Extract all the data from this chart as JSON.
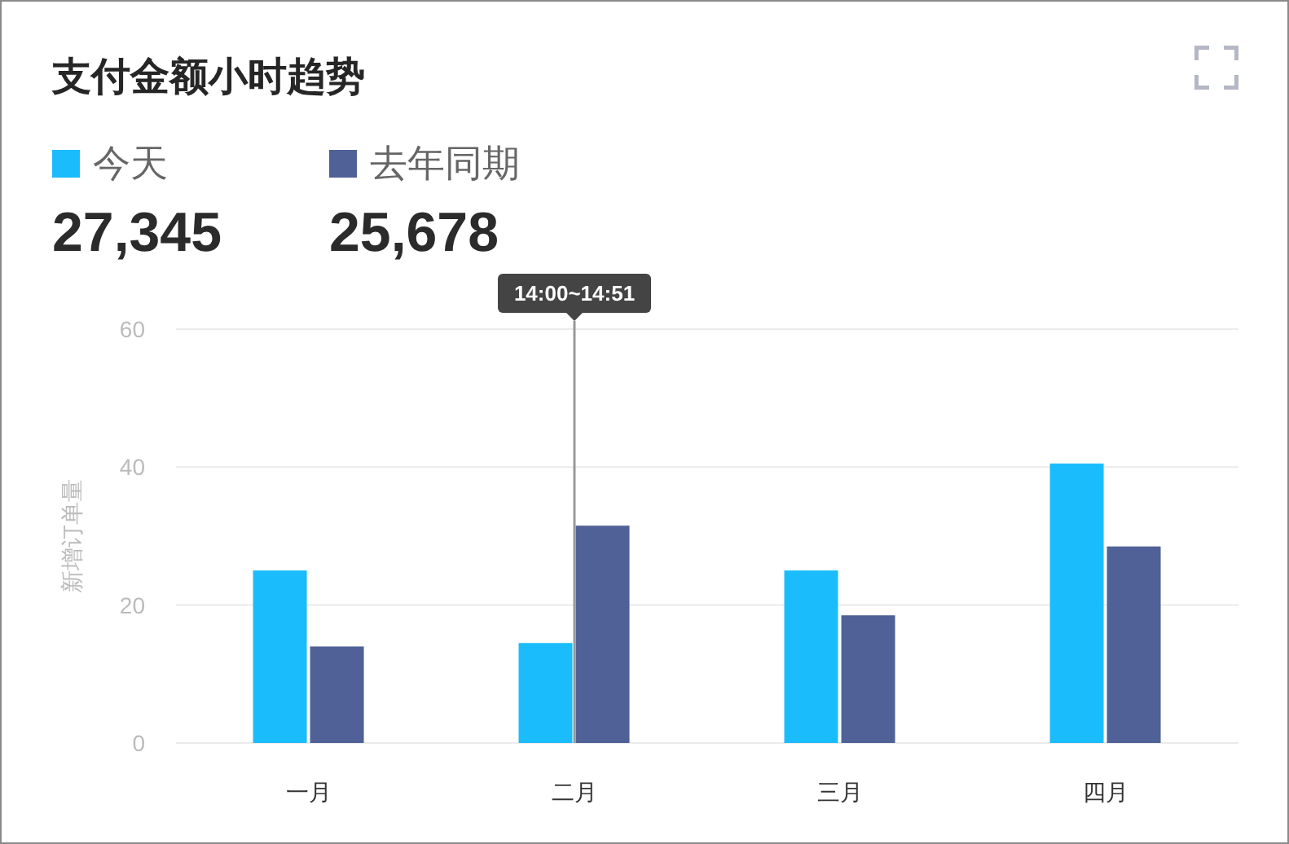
{
  "chart_data": {
    "type": "bar",
    "title": "支付金额小时趋势",
    "categories": [
      "一月",
      "二月",
      "三月",
      "四月"
    ],
    "series": [
      {
        "name": "今天",
        "color": "#1bbcfc",
        "values": [
          25,
          14.5,
          25,
          40.5
        ]
      },
      {
        "name": "去年同期",
        "color": "#4f6196",
        "values": [
          14,
          31.5,
          18.5,
          28.5
        ]
      }
    ],
    "ylabel": "新增订单量",
    "ylim": [
      0,
      60
    ],
    "yticks": [
      0,
      20,
      40,
      60
    ],
    "grid": "y",
    "legend": "top left",
    "annotations": [
      "27,345",
      "25,678"
    ],
    "ref_lines": [
      {
        "axis": "x",
        "value": "二月",
        "label": "14:00~14:51",
        "color": "#999999"
      }
    ]
  }
}
